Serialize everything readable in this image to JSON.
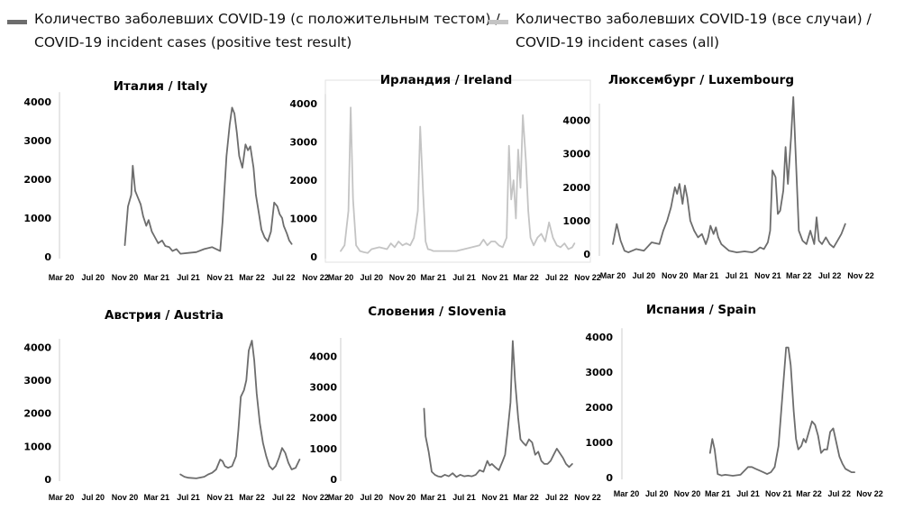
{
  "legend": {
    "dark": {
      "line1": "Количество заболевших COVID-19 (с положительным тестом) /",
      "line2": "COVID-19 incident cases (positive test result)",
      "color": "#6d6d6d"
    },
    "light": {
      "line1": "Количество заболевших COVID-19 (все случаи) /",
      "line2": "COVID-19 incident cases (all)",
      "color": "#c4c4c4"
    }
  },
  "chart_data": [
    {
      "type": "line",
      "title": "Италия / Italy",
      "series_style": "dark",
      "x_ticks": [
        "Mar 20",
        "Jul 20",
        "Nov 20",
        "Mar 21",
        "Jul 21",
        "Nov 21",
        "Mar 22",
        "Jul 22",
        "Nov 22"
      ],
      "xlim": [
        0,
        32
      ],
      "ylim": [
        0,
        4000
      ],
      "y_ticks": [
        "0",
        "1000",
        "2000",
        "3000",
        "4000"
      ],
      "x": [
        8,
        8.4,
        8.8,
        9.0,
        9.3,
        9.6,
        10.0,
        10.3,
        10.7,
        11,
        11.4,
        11.8,
        12.2,
        12.7,
        13.1,
        13.6,
        14,
        14.5,
        15,
        16,
        17,
        18,
        19,
        20,
        20.3,
        20.8,
        21.2,
        21.5,
        21.8,
        22.1,
        22.4,
        22.8,
        23.2,
        23.5,
        23.8,
        24.2,
        24.5,
        24.9,
        25.2,
        25.6,
        26,
        26.4,
        26.8,
        27.2,
        27.5,
        27.8,
        28.0,
        28.4,
        28.7,
        29
      ],
      "y": [
        300,
        1300,
        1600,
        2350,
        1700,
        1550,
        1350,
        1050,
        800,
        950,
        650,
        500,
        350,
        420,
        280,
        250,
        150,
        200,
        80,
        100,
        120,
        200,
        250,
        150,
        900,
        2600,
        3400,
        3850,
        3700,
        3200,
        2600,
        2300,
        2900,
        2750,
        2850,
        2300,
        1600,
        1100,
        700,
        500,
        400,
        650,
        1400,
        1300,
        1100,
        1000,
        800,
        600,
        420,
        330
      ]
    },
    {
      "type": "line",
      "title": "Ирландия / Ireland",
      "series_style": "light",
      "x_ticks": [
        "Mar 20",
        "Jul 20",
        "Nov 20",
        "Mar 21",
        "Jul 21",
        "Nov 21",
        "Mar 22",
        "Jul 22",
        "Nov 22"
      ],
      "xlim": [
        0,
        32
      ],
      "ylim": [
        0,
        4000
      ],
      "y_ticks": [
        "0",
        "1000",
        "2000",
        "3000",
        "4000"
      ],
      "x": [
        0,
        0.5,
        1,
        1.3,
        1.6,
        2,
        2.5,
        3,
        3.5,
        4,
        5,
        6,
        6.5,
        7,
        7.5,
        8,
        8.5,
        9,
        9.5,
        10,
        10.3,
        10.7,
        11,
        11.3,
        11.7,
        12,
        12.5,
        13,
        14,
        15,
        16,
        17,
        18,
        18.5,
        19,
        19.5,
        20,
        20.5,
        21,
        21.5,
        21.8,
        22.1,
        22.4,
        22.7,
        23,
        23.3,
        23.6,
        24,
        24.3,
        24.6,
        25,
        25.5,
        26,
        26.5,
        27,
        27.5,
        28,
        28.5,
        29,
        29.5,
        30,
        30.3
      ],
      "y": [
        150,
        300,
        1200,
        3900,
        1500,
        300,
        150,
        120,
        100,
        200,
        250,
        200,
        350,
        250,
        400,
        300,
        350,
        300,
        500,
        1200,
        3400,
        1600,
        400,
        200,
        180,
        150,
        150,
        150,
        150,
        150,
        200,
        250,
        300,
        450,
        300,
        400,
        400,
        300,
        250,
        500,
        2900,
        1500,
        2000,
        1000,
        2800,
        1800,
        3700,
        2500,
        1200,
        500,
        300,
        500,
        600,
        400,
        900,
        500,
        300,
        250,
        350,
        200,
        250,
        350
      ]
    },
    {
      "type": "line",
      "title": "Люксембург / Luxembourg",
      "series_style": "dark",
      "x_ticks": [
        "Mar 20",
        "Jul 20",
        "Nov 20",
        "Mar 21",
        "Jul 21",
        "Nov 21",
        "Mar 22",
        "Jul 22",
        "Nov 22"
      ],
      "xlim": [
        0,
        32
      ],
      "ylim": [
        0,
        4500
      ],
      "y_ticks": [
        "0",
        "1000",
        "2000",
        "3000",
        "4000"
      ],
      "x": [
        0,
        0.5,
        1,
        1.5,
        2,
        3,
        4,
        5,
        6,
        6.5,
        7,
        7.5,
        8,
        8.3,
        8.6,
        9,
        9.3,
        9.6,
        10,
        10.5,
        11,
        11.5,
        12,
        12.3,
        12.6,
        13,
        13.3,
        13.6,
        14,
        15,
        16,
        17,
        18,
        18.5,
        19,
        19.5,
        20,
        20.3,
        20.6,
        21,
        21.3,
        21.6,
        22,
        22.3,
        22.6,
        23,
        23.3,
        23.6,
        24,
        24.5,
        25,
        25.5,
        26,
        26.3,
        26.6,
        27,
        27.5,
        28,
        28.5,
        29,
        29.5,
        30
      ],
      "y": [
        300,
        900,
        400,
        100,
        50,
        150,
        100,
        350,
        300,
        700,
        1000,
        1400,
        2000,
        1800,
        2100,
        1500,
        2050,
        1700,
        1000,
        700,
        500,
        600,
        300,
        500,
        850,
        600,
        800,
        500,
        300,
        100,
        50,
        80,
        50,
        100,
        200,
        150,
        350,
        700,
        2500,
        2300,
        1200,
        1300,
        1900,
        3200,
        2100,
        3500,
        4700,
        3000,
        700,
        400,
        300,
        700,
        300,
        1100,
        400,
        300,
        500,
        300,
        200,
        400,
        600,
        900
      ]
    },
    {
      "type": "line",
      "title": "Австрия / Austria",
      "series_style": "dark",
      "x_ticks": [
        "Mar 20",
        "Jul 20",
        "Nov 20",
        "Mar 21",
        "Jul 21",
        "Nov 21",
        "Mar 22",
        "Jul 22",
        "Nov 22"
      ],
      "xlim": [
        0,
        32
      ],
      "ylim": [
        0,
        4200
      ],
      "y_ticks": [
        "0",
        "1000",
        "2000",
        "3000",
        "4000"
      ],
      "x": [
        15,
        15.5,
        16,
        17,
        18,
        18.5,
        19,
        19.5,
        20,
        20.3,
        20.6,
        21,
        21.5,
        22,
        22.3,
        22.6,
        23,
        23.3,
        23.6,
        24,
        24.3,
        24.6,
        25,
        25.4,
        25.8,
        26.2,
        26.6,
        27,
        27.4,
        27.8,
        28.2,
        28.6,
        29,
        29.5,
        30
      ],
      "y": [
        150,
        80,
        50,
        30,
        80,
        150,
        200,
        300,
        600,
        550,
        400,
        350,
        400,
        700,
        1500,
        2500,
        2700,
        3000,
        3900,
        4200,
        3600,
        2600,
        1700,
        1100,
        700,
        400,
        300,
        400,
        650,
        950,
        800,
        500,
        300,
        350,
        600
      ]
    },
    {
      "type": "line",
      "title": "Словения / Slovenia",
      "series_style": "dark",
      "x_ticks": [
        "Mar 20",
        "Jul 20",
        "Nov 20",
        "Mar 21",
        "Jul 21",
        "Nov 21",
        "Mar 22",
        "Jul 22",
        "Nov 22"
      ],
      "xlim": [
        0,
        32
      ],
      "ylim": [
        0,
        4600
      ],
      "y_ticks": [
        "0",
        "1000",
        "2000",
        "3000",
        "4000"
      ],
      "x": [
        10.8,
        11,
        11.4,
        11.8,
        12.2,
        12.6,
        13,
        13.5,
        14,
        14.5,
        15,
        15.5,
        16,
        16.5,
        17,
        17.5,
        18,
        18.5,
        19,
        19.3,
        19.6,
        20,
        20.5,
        21,
        21.3,
        21.6,
        22,
        22.3,
        22.6,
        23,
        23.3,
        23.6,
        24,
        24.4,
        24.8,
        25.2,
        25.6,
        26,
        26.4,
        26.8,
        27.2,
        27.6,
        28,
        28.4,
        28.8,
        29.2,
        29.6,
        30
      ],
      "y": [
        2300,
        1400,
        900,
        250,
        150,
        100,
        80,
        150,
        100,
        200,
        80,
        150,
        100,
        120,
        100,
        150,
        300,
        250,
        600,
        450,
        500,
        400,
        300,
        600,
        800,
        1500,
        2500,
        4500,
        3200,
        2000,
        1300,
        1200,
        1100,
        1300,
        1200,
        800,
        900,
        600,
        500,
        500,
        600,
        800,
        1000,
        850,
        700,
        500,
        400,
        500
      ]
    },
    {
      "type": "line",
      "title": "Испания / Spain",
      "series_style": "dark",
      "x_ticks": [
        "Mar 20",
        "Jul 20",
        "Nov 20",
        "Mar 21",
        "Jul 21",
        "Nov 21",
        "Mar 22",
        "Jul 22",
        "Nov 22"
      ],
      "xlim": [
        0,
        32
      ],
      "ylim": [
        0,
        4000
      ],
      "y_ticks": [
        "0",
        "1000",
        "2000",
        "3000",
        "4000"
      ],
      "x": [
        11,
        11.3,
        11.6,
        12,
        12.5,
        13,
        14,
        15,
        16,
        16.5,
        17,
        17.5,
        18,
        18.5,
        19,
        19.5,
        20,
        20.5,
        21,
        21.3,
        21.6,
        22,
        22.3,
        22.6,
        23,
        23.3,
        23.6,
        24,
        24.4,
        24.8,
        25.2,
        25.6,
        26,
        26.4,
        26.8,
        27.2,
        27.6,
        28,
        28.4,
        28.8,
        29.2,
        29.6,
        30
      ],
      "y": [
        700,
        1100,
        800,
        100,
        60,
        80,
        50,
        80,
        300,
        300,
        250,
        200,
        150,
        100,
        150,
        300,
        900,
        2300,
        3700,
        3700,
        3200,
        1900,
        1100,
        800,
        900,
        1100,
        1000,
        1300,
        1600,
        1500,
        1200,
        700,
        800,
        800,
        1300,
        1400,
        1000,
        600,
        400,
        250,
        200,
        150,
        150
      ]
    }
  ]
}
